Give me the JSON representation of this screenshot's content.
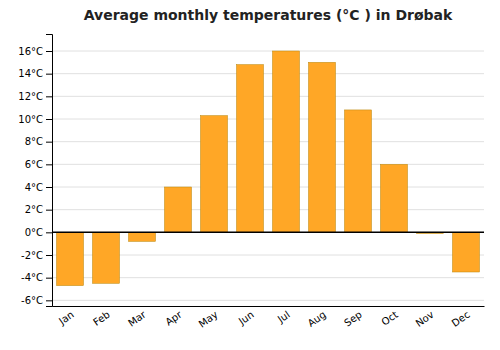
{
  "chart_data": {
    "type": "bar",
    "title": "Average monthly temperatures (°C ) in Drøbak",
    "categories": [
      "Jan",
      "Feb",
      "Mar",
      "Apr",
      "May",
      "Jun",
      "Jul",
      "Aug",
      "Sep",
      "Oct",
      "Nov",
      "Dec"
    ],
    "values": [
      -4.7,
      -4.5,
      -0.8,
      4.0,
      10.3,
      14.8,
      16.0,
      15.0,
      10.8,
      6.0,
      -0.1,
      -3.5
    ],
    "color": "#FFA726",
    "ylim": [
      -6.5,
      17.5
    ],
    "yticks": [
      {
        "value": -6,
        "label": "-6°C"
      },
      {
        "value": -4,
        "label": "-4°C"
      },
      {
        "value": -2,
        "label": "-2°C"
      },
      {
        "value": 0,
        "label": "0°C"
      },
      {
        "value": 2,
        "label": "2°C"
      },
      {
        "value": 4,
        "label": "4°C"
      },
      {
        "value": 6,
        "label": "6°C"
      },
      {
        "value": 8,
        "label": "8°C"
      },
      {
        "value": 10,
        "label": "10°C"
      },
      {
        "value": 12,
        "label": "12°C"
      },
      {
        "value": 14,
        "label": "14°C"
      },
      {
        "value": 16,
        "label": "16°C"
      }
    ],
    "grid": true
  }
}
